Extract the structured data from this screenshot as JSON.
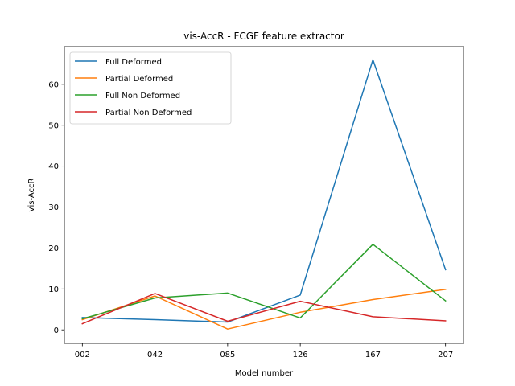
{
  "chart_data": {
    "type": "line",
    "title": "vis-AccR - FCGF feature extractor",
    "xlabel": "Model number",
    "ylabel": "vis-AccR",
    "categories": [
      "002",
      "042",
      "085",
      "126",
      "167",
      "207"
    ],
    "ylim": [
      -3.3,
      69.2
    ],
    "yticks": [
      0,
      10,
      20,
      30,
      40,
      50,
      60
    ],
    "grid": false,
    "legend_position": "top-left",
    "series": [
      {
        "name": "Full Deformed",
        "color": "#1f77b4",
        "values": [
          3.0,
          2.5,
          1.9,
          8.5,
          66.0,
          14.7
        ]
      },
      {
        "name": "Partial Deformed",
        "color": "#ff7f0e",
        "values": [
          2.5,
          8.3,
          0.2,
          4.3,
          7.4,
          9.9
        ]
      },
      {
        "name": "Full Non Deformed",
        "color": "#2ca02c",
        "values": [
          2.7,
          7.8,
          9.0,
          2.9,
          20.9,
          7.1
        ]
      },
      {
        "name": "Partial Non Deformed",
        "color": "#d62728",
        "values": [
          1.5,
          8.9,
          2.1,
          7.0,
          3.2,
          2.2
        ]
      }
    ]
  }
}
